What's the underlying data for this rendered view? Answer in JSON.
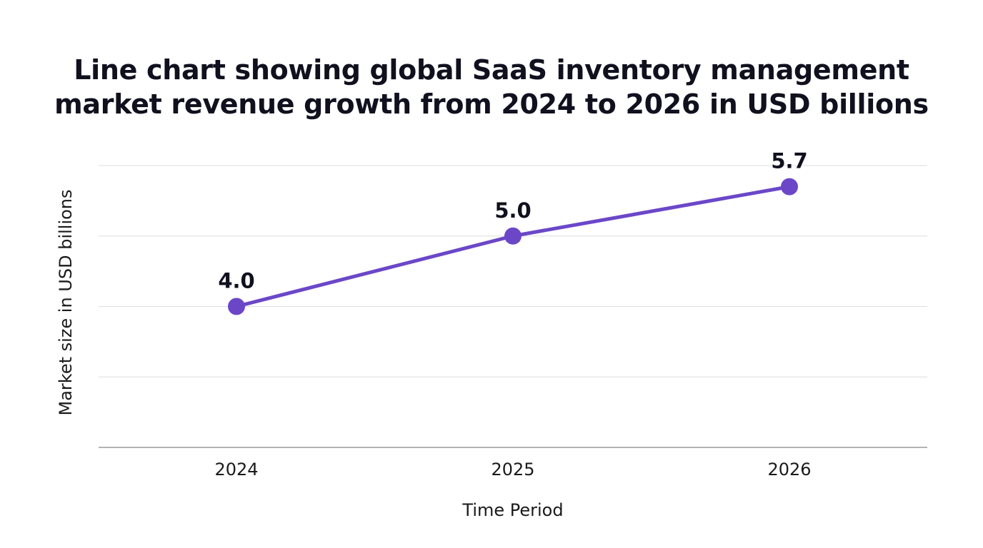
{
  "chart_data": {
    "type": "line",
    "title_lines": [
      "Line chart showing global SaaS inventory management",
      "market revenue growth from 2024 to 2026 in USD billions"
    ],
    "xlabel": "Time Period",
    "ylabel": "Market size in USD billions",
    "categories": [
      "2024",
      "2025",
      "2026"
    ],
    "values": [
      4.0,
      5.0,
      5.7
    ],
    "data_labels": [
      "4.0",
      "5.0",
      "5.7"
    ],
    "ylim": [
      2.0,
      6.0
    ],
    "grid": true,
    "y_tick_labels_shown": false,
    "colors": {
      "line": "#6b47c8",
      "marker": "#6b47c8",
      "grid": "#dddddd",
      "axis": "#999999"
    }
  }
}
